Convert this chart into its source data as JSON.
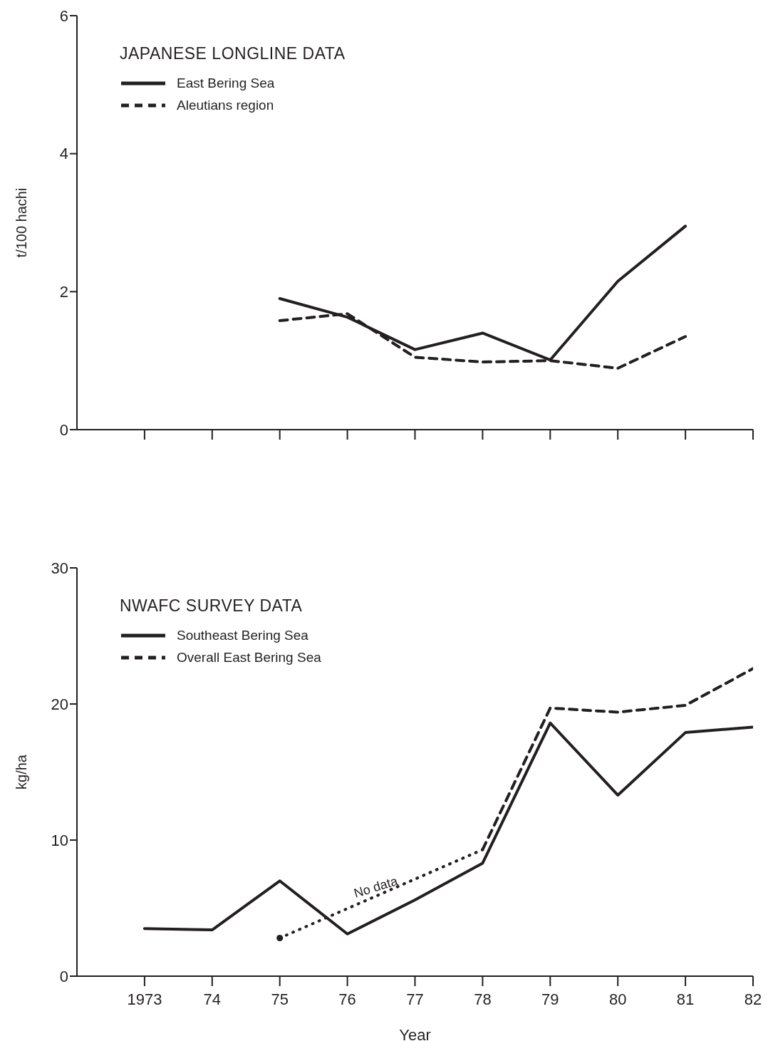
{
  "chart_data": [
    {
      "type": "line",
      "ylabel": "t/100 hachi",
      "legend_title": "JAPANESE LONGLINE DATA",
      "legend": "top left",
      "tick_labels": "y",
      "xlim": [
        1972,
        1982
      ],
      "xticks": [
        1973,
        1974,
        1975,
        1976,
        1977,
        1978,
        1979,
        1980,
        1981,
        1982
      ],
      "ylim": [
        0,
        6
      ],
      "yticks": [
        0,
        2,
        4,
        6
      ],
      "x": [
        1975,
        1976,
        1977,
        1978,
        1979,
        1980,
        1981
      ],
      "series": [
        {
          "name": "East Bering Sea",
          "color": "#231f20",
          "line_style": "solid",
          "values": [
            1.9,
            1.63,
            1.16,
            1.4,
            1.01,
            2.15,
            2.95
          ]
        },
        {
          "name": "Aleutians region",
          "color": "#231f20",
          "line_style": "dashed",
          "values": [
            1.58,
            1.68,
            1.05,
            0.98,
            1.0,
            0.89,
            1.35
          ]
        }
      ]
    },
    {
      "type": "line",
      "ylabel": "kg/ha",
      "xlabel": "Year",
      "legend_title": "NWAFC SURVEY DATA",
      "legend": "top left",
      "xlim": [
        1972,
        1982
      ],
      "xticks": [
        1973,
        {
          "value": 1974,
          "label": "74"
        },
        {
          "value": 1975,
          "label": "75"
        },
        {
          "value": 1976,
          "label": "76"
        },
        {
          "value": 1977,
          "label": "77"
        },
        {
          "value": 1978,
          "label": "78"
        },
        {
          "value": 1979,
          "label": "79"
        },
        {
          "value": 1980,
          "label": "80"
        },
        {
          "value": 1981,
          "label": "81"
        },
        {
          "value": 1982,
          "label": "82"
        }
      ],
      "ylim": [
        0,
        30
      ],
      "yticks": [
        0,
        10,
        20,
        30
      ],
      "x": [
        1973,
        1974,
        1975,
        1976,
        1977,
        1978,
        1979,
        1980,
        1981,
        1982
      ],
      "annotations": [
        "No data"
      ],
      "series": [
        {
          "name": "Southeast Bering Sea",
          "color": "#231f20",
          "line_style": "solid",
          "values": [
            3.5,
            3.4,
            7.0,
            3.1,
            5.6,
            8.3,
            18.6,
            13.3,
            17.9,
            18.3
          ]
        },
        {
          "name": "Overall East Bering Sea",
          "color": "#231f20",
          "line_style": "dashed",
          "x": [
            1978,
            1979,
            1980,
            1981,
            1982
          ],
          "values": [
            9.3,
            19.7,
            19.4,
            19.9,
            22.6
          ]
        },
        {
          "color": "#231f20",
          "line_style": "dotted",
          "x": [
            1975,
            1978
          ],
          "values": [
            2.8,
            9.3
          ]
        },
        {
          "type": "scatter",
          "color": "#231f20",
          "marker": "circle",
          "x": [
            1975
          ],
          "values": [
            2.8
          ]
        }
      ]
    }
  ]
}
